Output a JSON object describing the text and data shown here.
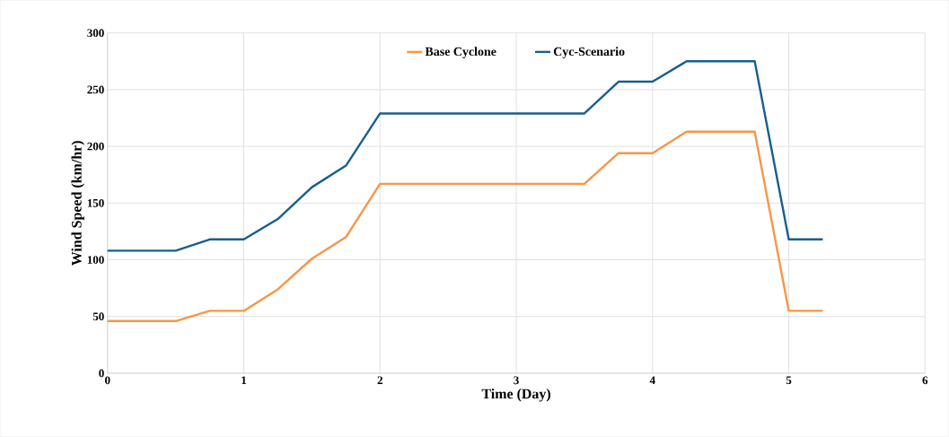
{
  "chart_data": {
    "type": "line",
    "xlabel": "Time (Day)",
    "ylabel": "Wind Speed (km/hr)",
    "x": [
      0,
      0.25,
      0.5,
      0.75,
      1,
      1.25,
      1.5,
      1.75,
      2,
      2.25,
      2.5,
      2.75,
      3,
      3.25,
      3.5,
      3.75,
      4,
      4.25,
      4.5,
      4.75,
      5,
      5.25
    ],
    "series": [
      {
        "name": "Base Cyclone",
        "color": "#f79646",
        "values": [
          46,
          46,
          46,
          55,
          55,
          74,
          101,
          120,
          167,
          167,
          167,
          167,
          167,
          167,
          167,
          194,
          194,
          213,
          213,
          213,
          55,
          55
        ]
      },
      {
        "name": "Cyc-Scenario",
        "color": "#175f8c",
        "values": [
          108,
          108,
          108,
          118,
          118,
          136,
          164,
          183,
          229,
          229,
          229,
          229,
          229,
          229,
          229,
          257,
          257,
          275,
          275,
          275,
          118,
          118
        ]
      }
    ],
    "xlim": [
      0,
      6
    ],
    "ylim": [
      0,
      300
    ],
    "xticks": [
      0,
      1,
      2,
      3,
      4,
      5,
      6
    ],
    "yticks": [
      0,
      50,
      100,
      150,
      200,
      250,
      300
    ],
    "grid": true,
    "legend": "top",
    "marker": "none",
    "line_style": "solid"
  }
}
